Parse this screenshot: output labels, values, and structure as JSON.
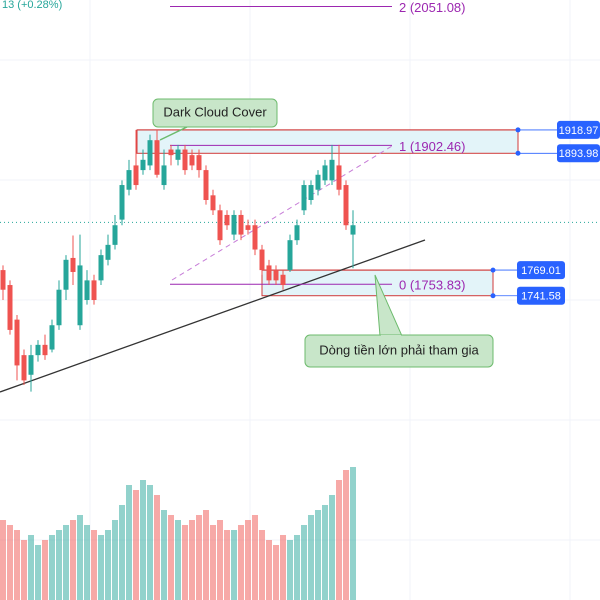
{
  "header": {
    "text": "13 (+0.28%)"
  },
  "chart_data": {
    "type": "candlestick",
    "ylim": [
      1416,
      2058
    ],
    "up_color": "#26a69a",
    "down_color": "#ef5350",
    "open": [
      1769,
      1753,
      1716,
      1678,
      1657,
      1678,
      1689,
      1684,
      1710,
      1748,
      1782,
      1710,
      1737,
      1758,
      1758,
      1780,
      1796,
      1823,
      1855,
      1881,
      1876,
      1881,
      1908,
      1860,
      1898,
      1887,
      1898,
      1892,
      1892,
      1876,
      1849,
      1833,
      1828,
      1807,
      1828,
      1817,
      1817,
      1791,
      1774,
      1769,
      1764,
      1769,
      1801,
      1833,
      1844,
      1855,
      1865,
      1865,
      1881,
      1860,
      1807
    ],
    "high": [
      1774,
      1758,
      1721,
      1684,
      1689,
      1694,
      1700,
      1716,
      1758,
      1785,
      1806,
      1807,
      1769,
      1764,
      1791,
      1807,
      1828,
      1865,
      1887,
      1919,
      1898,
      1914,
      1919,
      1898,
      1903,
      1903,
      1903,
      1898,
      1898,
      1881,
      1855,
      1839,
      1833,
      1833,
      1833,
      1823,
      1823,
      1796,
      1780,
      1774,
      1769,
      1807,
      1823,
      1865,
      1865,
      1876,
      1887,
      1903,
      1903,
      1865,
      1833
    ],
    "low": [
      1737,
      1700,
      1651,
      1646,
      1639,
      1671,
      1673,
      1681,
      1705,
      1737,
      1753,
      1705,
      1732,
      1732,
      1753,
      1774,
      1791,
      1817,
      1849,
      1855,
      1871,
      1876,
      1868,
      1855,
      1881,
      1881,
      1871,
      1876,
      1868,
      1839,
      1828,
      1796,
      1812,
      1801,
      1801,
      1807,
      1785,
      1764,
      1753,
      1753,
      1748,
      1767,
      1796,
      1828,
      1839,
      1849,
      1860,
      1860,
      1849,
      1812,
      1771
    ],
    "close": [
      1748,
      1705,
      1667,
      1651,
      1678,
      1689,
      1678,
      1710,
      1748,
      1780,
      1767,
      1774,
      1758,
      1737,
      1785,
      1796,
      1817,
      1860,
      1876,
      1860,
      1887,
      1908,
      1871,
      1881,
      1892,
      1898,
      1876,
      1881,
      1876,
      1844,
      1833,
      1801,
      1817,
      1828,
      1807,
      1812,
      1791,
      1769,
      1758,
      1758,
      1753,
      1801,
      1817,
      1860,
      1860,
      1871,
      1881,
      1887,
      1855,
      1817,
      1817
    ],
    "volume": {
      "ylim": [
        0,
        300
      ],
      "values": [
        80,
        75,
        70,
        60,
        65,
        55,
        60,
        65,
        70,
        75,
        80,
        85,
        75,
        70,
        65,
        70,
        80,
        95,
        115,
        110,
        120,
        115,
        105,
        90,
        85,
        80,
        75,
        80,
        85,
        90,
        75,
        80,
        70,
        70,
        75,
        80,
        85,
        70,
        60,
        55,
        65,
        60,
        65,
        75,
        85,
        90,
        95,
        105,
        120,
        130,
        133
      ]
    },
    "last_price": 1820,
    "fib": {
      "color": "#9c27b0",
      "values": [
        2051.08,
        1902.46,
        1753.83
      ],
      "value_labels": [
        "2 (2051.08)",
        "1 (1902.46)",
        "0 (1753.83)"
      ]
    },
    "zones": [
      {
        "top": 1918.97,
        "bottom": 1893.98
      },
      {
        "top": 1769.01,
        "bottom": 1741.58
      }
    ],
    "annotations": [
      "Dark Cloud Cover",
      "Dòng tiền lớn phải tham gia"
    ]
  }
}
